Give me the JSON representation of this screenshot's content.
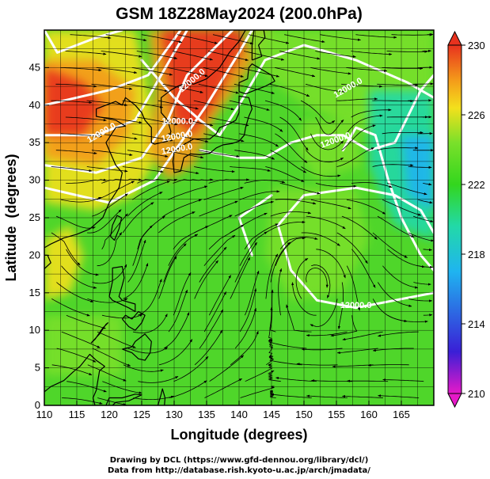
{
  "title": "GSM 18Z28May2024 (200.0hPa)",
  "chart_data": {
    "type": "heatmap",
    "title": "GSM 18Z28May2024 (200.0hPa)",
    "xlabel": "Longitude (degrees)",
    "ylabel": "Latitude  (degrees)",
    "xlim": [
      110,
      170
    ],
    "ylim": [
      0,
      50
    ],
    "x_ticks": [
      "110",
      "115",
      "120",
      "125",
      "130",
      "135",
      "140",
      "145",
      "150",
      "155",
      "160",
      "165"
    ],
    "y_ticks": [
      "0",
      "5",
      "10",
      "15",
      "20",
      "25",
      "30",
      "35",
      "40",
      "45"
    ],
    "grid": true,
    "colorbar": {
      "ticks": [
        "210",
        "214",
        "218",
        "222",
        "226",
        "230"
      ],
      "range": [
        210,
        230
      ],
      "colors": [
        "#e619c8",
        "#3a1fd6",
        "#1fb4f0",
        "#22d9a8",
        "#33d61e",
        "#7ae02a",
        "#f3e01c",
        "#f49a1a",
        "#e8321e"
      ]
    },
    "contour_labels": [
      "12000.0",
      "12000.0",
      "12000.0",
      "12000.0",
      "12000.0",
      "12000.0",
      "12000.0",
      "12000.0"
    ]
  },
  "credits": {
    "line1": "Drawing by DCL (https://www.gfd-dennou.org/library/dcl/)",
    "line2": "Data from http://database.rish.kyoto-u.ac.jp/arch/jmadata/"
  }
}
